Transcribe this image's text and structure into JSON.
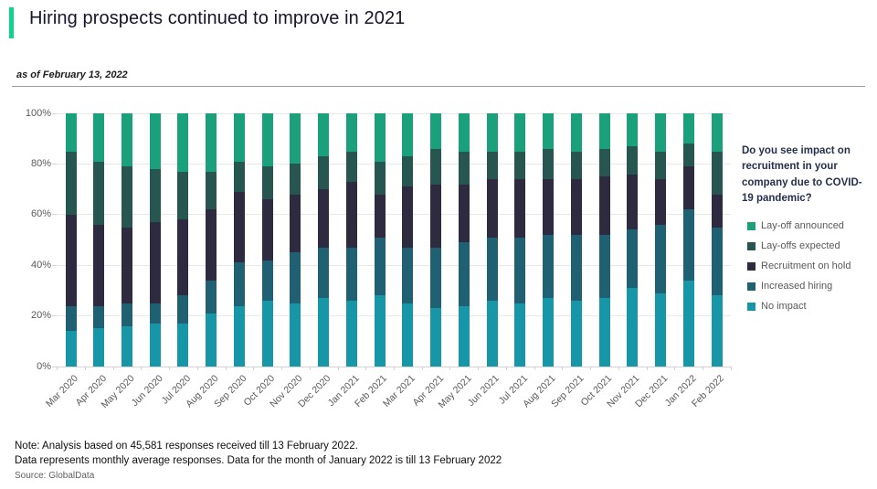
{
  "header": {
    "title": "Hiring prospects continued to improve in 2021",
    "as_of": "as of February 13, 2022",
    "accent_color": "#0ed48e"
  },
  "legend": {
    "title": "Do you see impact on recruitment in your company due to COVID-19 pandemic?",
    "items": [
      {
        "label": "Lay-off announced",
        "color": "#1aa07b"
      },
      {
        "label": "Lay-offs expected",
        "color": "#275550"
      },
      {
        "label": "Recruitment on hold",
        "color": "#2e2a40"
      },
      {
        "label": "Increased hiring",
        "color": "#206073"
      },
      {
        "label": "No impact",
        "color": "#1696a6"
      }
    ]
  },
  "notes": {
    "line1": "Note: Analysis based on 45,581 responses received till 13 February 2022.",
    "line2": "Data represents monthly average responses. Data for the month of January 2022 is till 13 February 2022",
    "source": "Source: GlobalData"
  },
  "chart_data": {
    "type": "bar",
    "stacked": true,
    "unit": "percent of responses",
    "title": "Do you see impact on recruitment in your company due to COVID-19 pandemic?",
    "xlabel": "",
    "ylabel": "",
    "ylim": [
      0,
      100
    ],
    "yticks": [
      "0%",
      "20%",
      "40%",
      "60%",
      "80%",
      "100%"
    ],
    "grid": true,
    "legend_position": "right",
    "categories": [
      "Mar 2020",
      "Apr 2020",
      "May 2020",
      "Jun 2020",
      "Jul 2020",
      "Aug 2020",
      "Sep 2020",
      "Oct 2020",
      "Nov 2020",
      "Dec 2020",
      "Jan 2021",
      "Feb 2021",
      "Mar 2021",
      "Apr 2021",
      "May 2021",
      "Jun 2021",
      "Jul 2021",
      "Aug 2021",
      "Sep 2021",
      "Oct 2021",
      "Nov 2021",
      "Dec 2021",
      "Jan 2022",
      "Feb 2022"
    ],
    "series": [
      {
        "name": "No impact",
        "color": "#1696a6",
        "values": [
          14,
          15,
          16,
          17,
          17,
          21,
          24,
          26,
          25,
          27,
          26,
          28,
          25,
          23,
          24,
          26,
          25,
          27,
          26,
          27,
          31,
          29,
          34,
          28
        ]
      },
      {
        "name": "Increased hiring",
        "color": "#206073",
        "values": [
          10,
          9,
          9,
          8,
          11,
          13,
          17,
          16,
          20,
          20,
          21,
          23,
          22,
          24,
          25,
          25,
          26,
          25,
          26,
          25,
          23,
          27,
          28,
          27
        ]
      },
      {
        "name": "Recruitment on hold",
        "color": "#2e2a40",
        "values": [
          36,
          32,
          30,
          32,
          30,
          28,
          28,
          24,
          23,
          23,
          26,
          17,
          24,
          25,
          23,
          23,
          23,
          22,
          22,
          23,
          22,
          18,
          17,
          13
        ]
      },
      {
        "name": "Lay-offs expected",
        "color": "#275550",
        "values": [
          25,
          25,
          24,
          21,
          19,
          15,
          12,
          13,
          12,
          13,
          12,
          13,
          12,
          14,
          13,
          11,
          11,
          12,
          11,
          11,
          11,
          11,
          9,
          17
        ]
      },
      {
        "name": "Lay-off announced",
        "color": "#1aa07b",
        "values": [
          15,
          19,
          21,
          22,
          23,
          23,
          19,
          21,
          20,
          17,
          15,
          19,
          17,
          14,
          15,
          15,
          15,
          14,
          15,
          14,
          13,
          15,
          12,
          15
        ]
      }
    ]
  }
}
